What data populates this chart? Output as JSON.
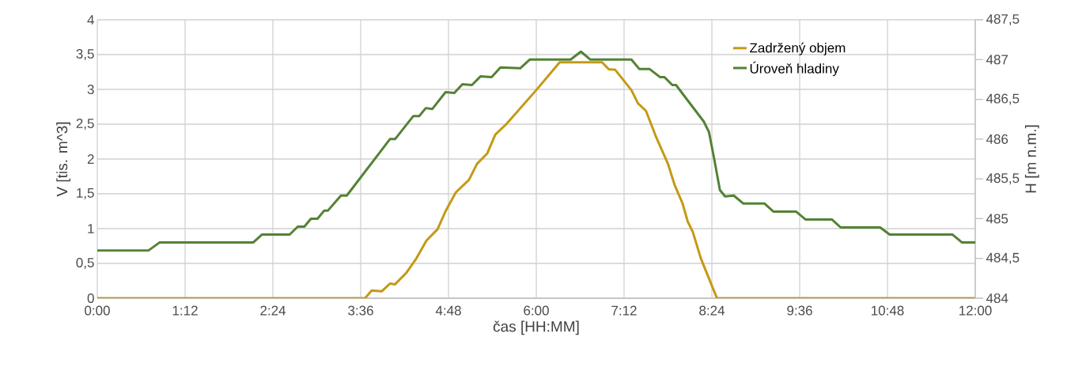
{
  "chart_data": {
    "type": "line",
    "xlabel": "čas [HH:MM]",
    "ylabel": "V [tis. m^3]",
    "y2label": "H [m n.m.]",
    "xlim": [
      0,
      12
    ],
    "xticks": [
      {
        "value": 0,
        "label": "0:00"
      },
      {
        "value": 1.2,
        "label": "1:12"
      },
      {
        "value": 2.4,
        "label": "2:24"
      },
      {
        "value": 3.6,
        "label": "3:36"
      },
      {
        "value": 4.8,
        "label": "4:48"
      },
      {
        "value": 6,
        "label": "6:00"
      },
      {
        "value": 7.2,
        "label": "7:12"
      },
      {
        "value": 8.4,
        "label": "8:24"
      },
      {
        "value": 9.6,
        "label": "9:36"
      },
      {
        "value": 10.8,
        "label": "10:48"
      },
      {
        "value": 12,
        "label": "12:00"
      }
    ],
    "ylim": [
      0,
      4
    ],
    "yticks": [
      0,
      {
        "value": 0.5,
        "label": "0,5"
      },
      1,
      {
        "value": 1.5,
        "label": "1,5"
      },
      2,
      {
        "value": 2.5,
        "label": "2,5"
      },
      3,
      {
        "value": 3.5,
        "label": "3,5"
      },
      4
    ],
    "y2lim": [
      484,
      487.5
    ],
    "y2ticks": [
      484,
      {
        "value": 484.5,
        "label": "484,5"
      },
      485,
      {
        "value": 485.5,
        "label": "485,5"
      },
      486,
      {
        "value": 486.5,
        "label": "486,5"
      },
      487,
      {
        "value": 487.5,
        "label": "487,5"
      }
    ],
    "grid": true,
    "legend": "top right",
    "marker": "none",
    "line_style": "solid",
    "series": [
      {
        "name": "Zadržený objem",
        "color": "#c49a14",
        "x": [
          0,
          3.66,
          3.75,
          3.89,
          4.0,
          4.07,
          4.22,
          4.36,
          4.5,
          4.65,
          4.76,
          4.9,
          5.08,
          5.19,
          5.33,
          5.44,
          5.59,
          6.0,
          6.32,
          6.9,
          6.99,
          7.08,
          7.3,
          7.39,
          7.5,
          7.64,
          7.8,
          7.89,
          8.0,
          8.07,
          8.14,
          8.25,
          8.47,
          12
        ],
        "values": [
          0,
          0,
          0.11,
          0.1,
          0.21,
          0.2,
          0.36,
          0.57,
          0.83,
          0.99,
          1.25,
          1.52,
          1.7,
          1.93,
          2.08,
          2.35,
          2.5,
          2.99,
          3.39,
          3.39,
          3.29,
          3.28,
          2.99,
          2.8,
          2.69,
          2.31,
          1.93,
          1.63,
          1.36,
          1.1,
          0.95,
          0.57,
          0,
          0
        ]
      },
      {
        "name": "Úroveň hladiny",
        "color": "#548235",
        "axis": "y2",
        "x": [
          0,
          0.7,
          0.85,
          2.13,
          2.25,
          2.63,
          2.74,
          2.83,
          2.92,
          3.01,
          3.1,
          3.15,
          3.33,
          3.41,
          4.0,
          4.07,
          4.32,
          4.4,
          4.49,
          4.58,
          4.76,
          4.88,
          4.99,
          5.12,
          5.24,
          5.39,
          5.51,
          5.78,
          5.91,
          6.47,
          6.61,
          6.74,
          7.3,
          7.41,
          7.55,
          7.69,
          7.75,
          7.86,
          7.91,
          8.29,
          8.36,
          8.43,
          8.51,
          8.58,
          8.7,
          8.83,
          9.12,
          9.24,
          9.55,
          9.68,
          10.04,
          10.16,
          10.7,
          10.83,
          11.69,
          11.82,
          12
        ],
        "values": [
          484.6,
          484.6,
          484.7,
          484.7,
          484.8,
          484.8,
          484.9,
          484.9,
          485.0,
          485.0,
          485.1,
          485.1,
          485.29,
          485.29,
          486.0,
          486.0,
          486.29,
          486.29,
          486.39,
          486.38,
          486.59,
          486.58,
          486.69,
          486.68,
          486.79,
          486.78,
          486.9,
          486.89,
          487.0,
          487.0,
          487.1,
          487.0,
          487.0,
          486.88,
          486.88,
          486.78,
          486.78,
          486.68,
          486.68,
          486.22,
          486.09,
          485.76,
          485.36,
          485.28,
          485.29,
          485.19,
          485.19,
          485.09,
          485.09,
          484.99,
          484.99,
          484.89,
          484.89,
          484.8,
          484.8,
          484.7,
          484.7
        ]
      }
    ]
  }
}
